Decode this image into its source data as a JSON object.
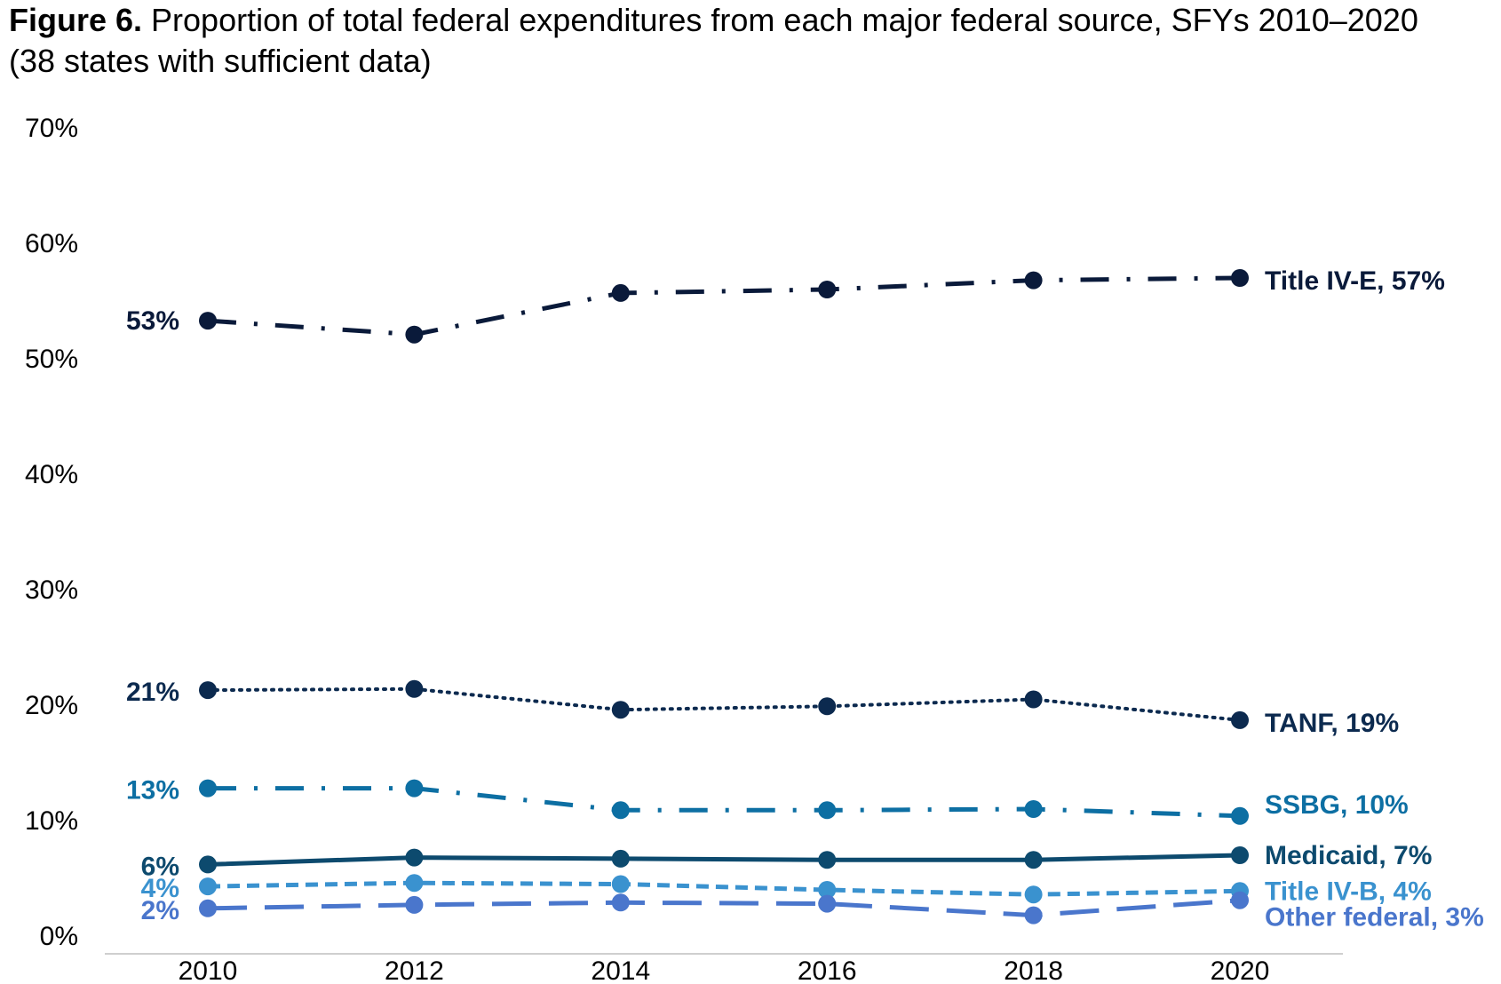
{
  "title": {
    "lead": "Figure 6.",
    "text": " Proportion of total federal expenditures from each major federal source, SFYs 2010–2020 (38 states with sufficient data)"
  },
  "chart_data": {
    "type": "line",
    "x": [
      2010,
      2012,
      2014,
      2016,
      2018,
      2020
    ],
    "x_tick_labels": [
      "2010",
      "2012",
      "2014",
      "2016",
      "2018",
      "2020"
    ],
    "ylim": [
      0,
      70
    ],
    "y_ticks": [
      0,
      10,
      20,
      30,
      40,
      50,
      60,
      70
    ],
    "y_tick_labels": [
      "0%",
      "10%",
      "20%",
      "30%",
      "40%",
      "50%",
      "60%",
      "70%"
    ],
    "grid": false,
    "legend": "none",
    "series": [
      {
        "name": "Title IV-E",
        "values": [
          53.3,
          52.1,
          55.7,
          56.0,
          56.8,
          57.0
        ],
        "start_label": "53%",
        "end_label": "Title IV-E, 57%",
        "color": "#0a1a3a",
        "dash": "dash-dot"
      },
      {
        "name": "TANF",
        "values": [
          21.3,
          21.4,
          19.6,
          19.9,
          20.5,
          18.7
        ],
        "start_label": "21%",
        "end_label": "TANF, 19%",
        "color": "#0c2a4f",
        "dash": "dotted"
      },
      {
        "name": "SSBG",
        "values": [
          12.8,
          12.8,
          10.9,
          10.9,
          11.0,
          10.4
        ],
        "start_label": "13%",
        "end_label": "SSBG, 10%",
        "color": "#0d6fa3",
        "dash": "dash-dot"
      },
      {
        "name": "Medicaid",
        "values": [
          6.2,
          6.8,
          6.7,
          6.6,
          6.6,
          7.0
        ],
        "start_label": "6%",
        "end_label": "Medicaid, 7%",
        "color": "#0d4a6e",
        "dash": "solid"
      },
      {
        "name": "Title IV-B",
        "values": [
          4.3,
          4.6,
          4.5,
          4.0,
          3.6,
          3.9
        ],
        "start_label": "4%",
        "end_label": "Title IV-B, 4%",
        "color": "#3a92cf",
        "dash": "dashed"
      },
      {
        "name": "Other federal",
        "values": [
          2.4,
          2.7,
          2.9,
          2.8,
          1.8,
          3.1
        ],
        "start_label": "2%",
        "end_label": "Other federal, 3%",
        "color": "#4a76cc",
        "dash": "long-dash"
      }
    ]
  }
}
